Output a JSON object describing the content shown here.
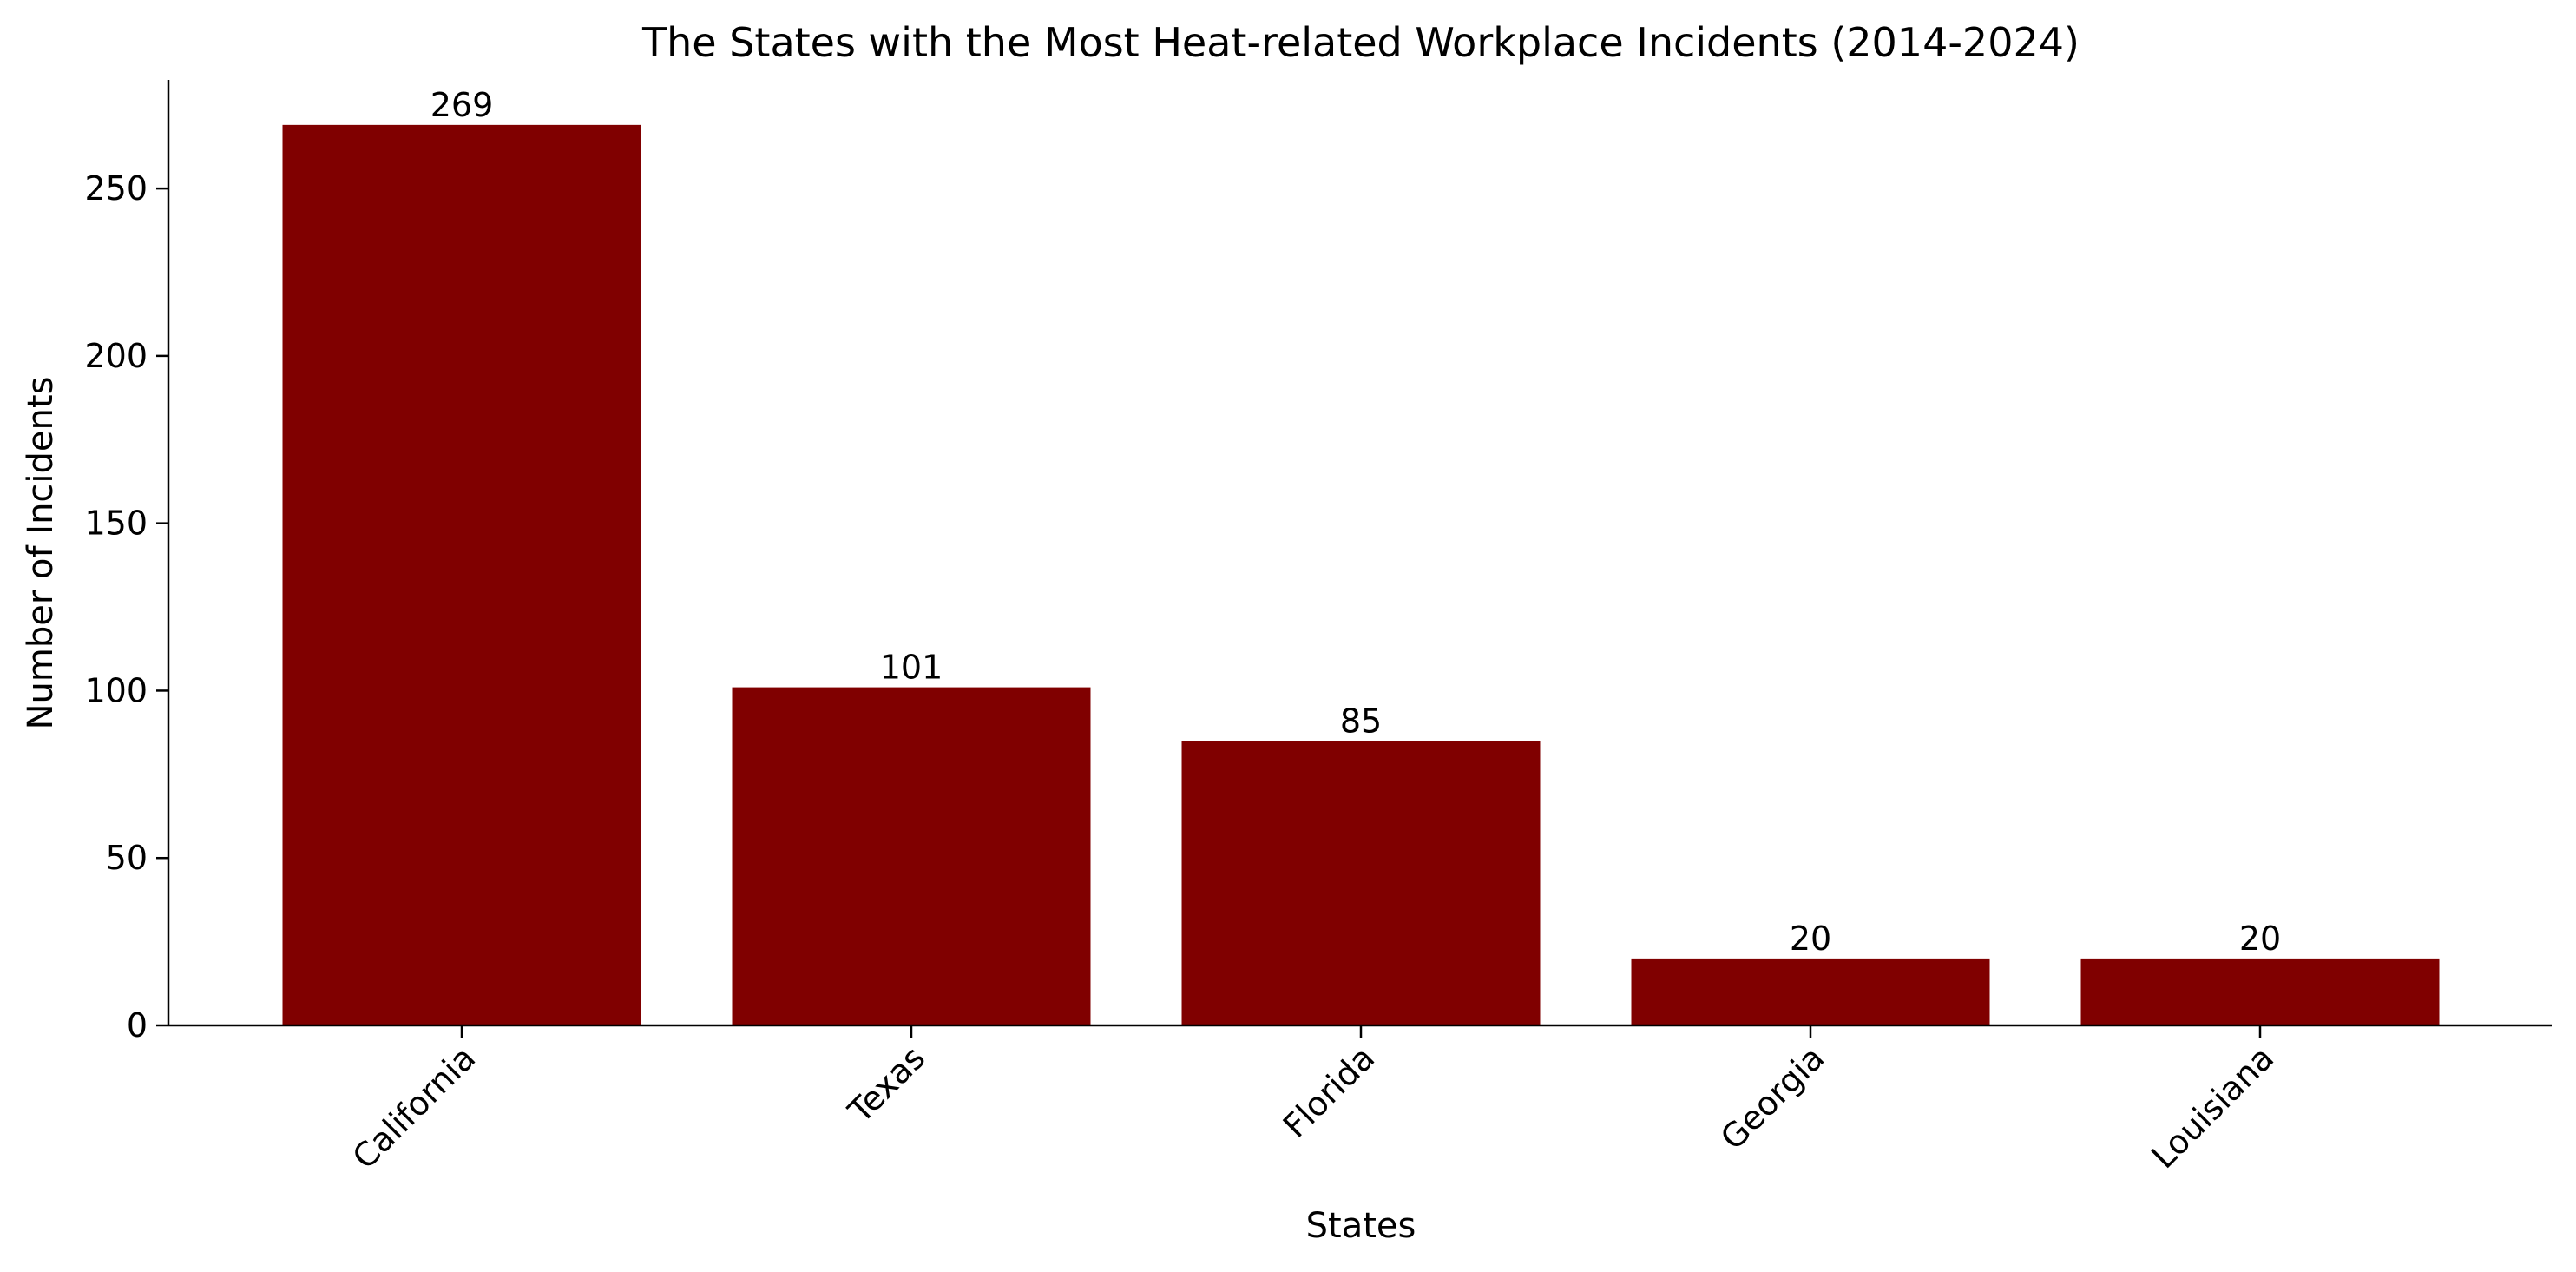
{
  "chart_data": {
    "type": "bar",
    "title": "The States with the Most Heat-related Workplace Incidents (2014-2024)",
    "xlabel": "States",
    "ylabel": "Number of Incidents",
    "categories": [
      "California",
      "Texas",
      "Florida",
      "Georgia",
      "Louisiana"
    ],
    "values": [
      269,
      101,
      85,
      20,
      20
    ],
    "data_labels": [
      "269",
      "101",
      "85",
      "20",
      "20"
    ],
    "ylim": [
      0,
      282.45
    ],
    "yticks": [
      0,
      50,
      100,
      150,
      200,
      250
    ],
    "xtick_rotation": -45,
    "grid": false,
    "legend": "none",
    "bar_color": "#800000"
  }
}
